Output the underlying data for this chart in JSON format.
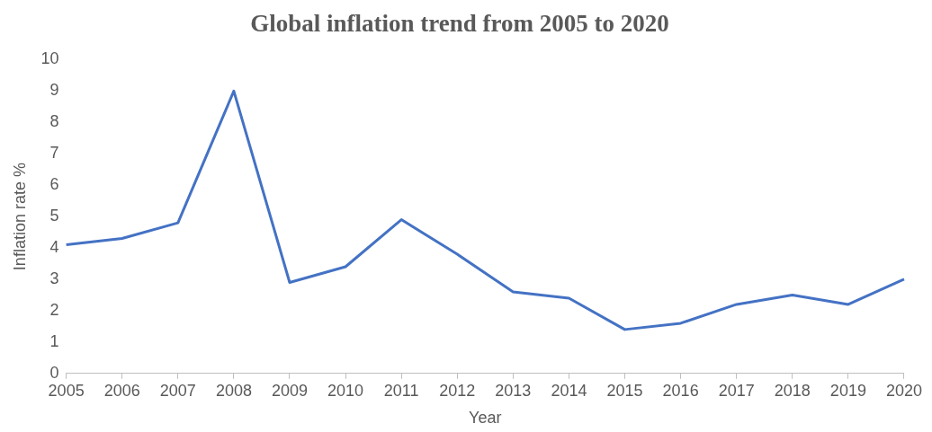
{
  "chart_data": {
    "type": "line",
    "title": "Global inflation trend from 2005 to 2020",
    "xlabel": "Year",
    "ylabel": "Inflation rate %",
    "categories": [
      "2005",
      "2006",
      "2007",
      "2008",
      "2009",
      "2010",
      "2011",
      "2012",
      "2013",
      "2014",
      "2015",
      "2016",
      "2017",
      "2018",
      "2019",
      "2020"
    ],
    "series": [
      {
        "color": "#4472c4",
        "values": [
          4.1,
          4.3,
          4.8,
          9.0,
          2.9,
          3.4,
          4.9,
          3.8,
          2.6,
          2.4,
          1.4,
          1.6,
          2.2,
          2.5,
          2.2,
          3.0
        ]
      }
    ],
    "ylim": [
      0,
      10
    ],
    "yticks": [
      0,
      1,
      2,
      3,
      4,
      5,
      6,
      7,
      8,
      9,
      10
    ],
    "grid": false,
    "legend": false,
    "marker": "none",
    "line_style": "solid"
  }
}
